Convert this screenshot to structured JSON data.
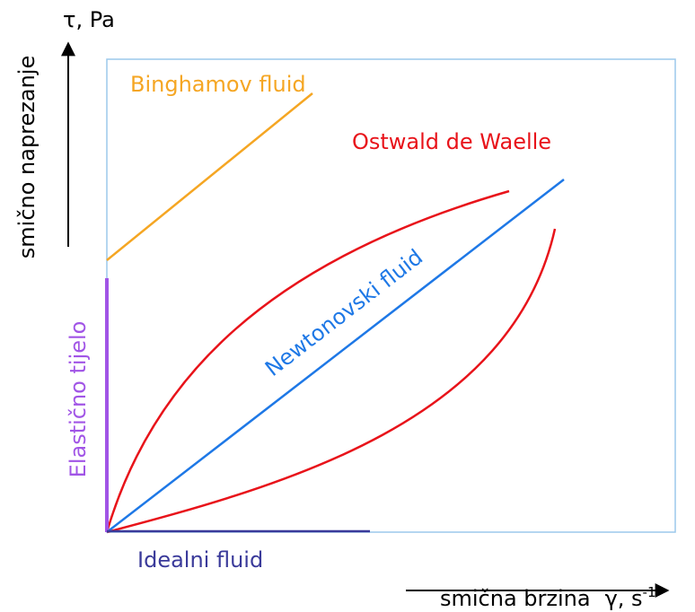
{
  "y_axis": {
    "symbol": "τ, Pa",
    "label": "smično naprezanje"
  },
  "x_axis": {
    "label": "smična brzina",
    "symbol": "γ, s",
    "exponent": "-1"
  },
  "curves": {
    "bingham": "Binghamov fluid",
    "ostwald": "Ostwald de Waelle",
    "newton": "Newtonovski fluid",
    "elastic": "Elastično tijelo",
    "ideal": "Idealni fluid"
  }
}
